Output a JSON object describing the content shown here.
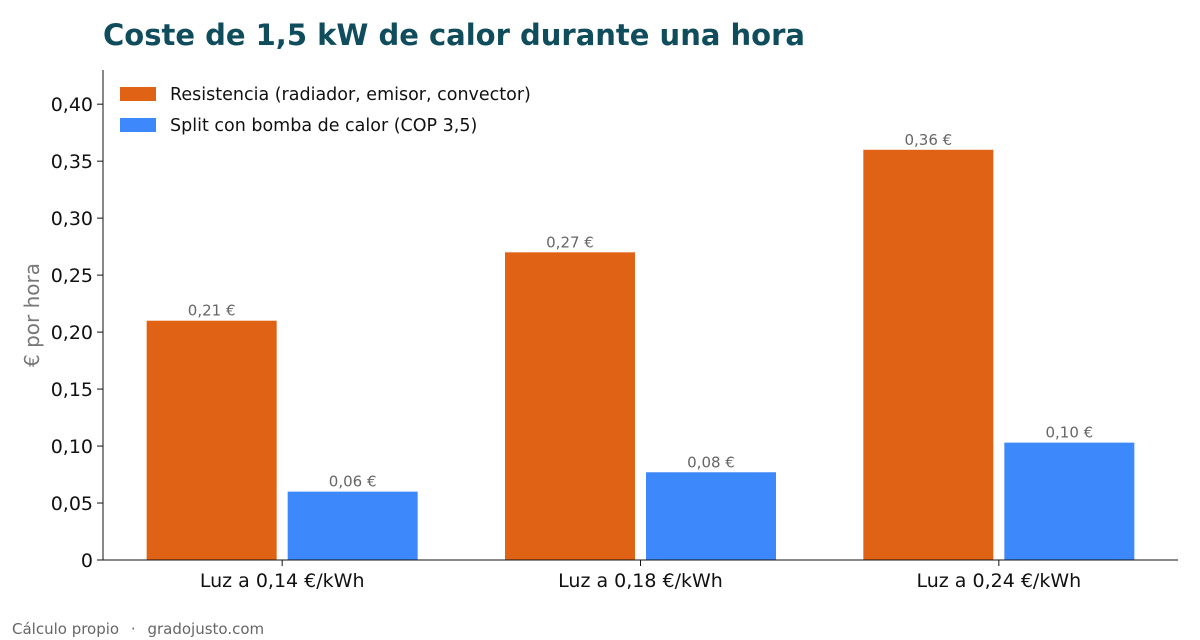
{
  "chart_data": {
    "type": "bar",
    "title": "Coste de 1,5 kW de calor durante una hora",
    "ylabel": "€ por hora",
    "xlabel": "",
    "categories": [
      "Luz a 0,14 €/kWh",
      "Luz a 0,18 €/kWh",
      "Luz a 0,24 €/kWh"
    ],
    "series": [
      {
        "name": "Resistencia (radiador, emisor, convector)",
        "color": "#e06215",
        "values": [
          0.21,
          0.27,
          0.36
        ],
        "labels": [
          "0,21 €",
          "0,27 €",
          "0,36 €"
        ]
      },
      {
        "name": "Split con bomba de calor (COP 3,5)",
        "color": "#3d89fb",
        "values": [
          0.06,
          0.077,
          0.103
        ],
        "labels": [
          "0,06 €",
          "0,08 €",
          "0,10 €"
        ]
      }
    ],
    "ylim": [
      0,
      0.43
    ],
    "yticks": [
      0,
      0.05,
      0.1,
      0.15,
      0.2,
      0.25,
      0.3,
      0.35,
      0.4
    ],
    "ytick_labels": [
      "0",
      "0,05",
      "0,10",
      "0,15",
      "0,20",
      "0,25",
      "0,30",
      "0,35",
      "0,40"
    ],
    "grid": false,
    "legend_position": "top-left"
  },
  "footer": {
    "source": "Cálculo propio",
    "separator": "·",
    "site": "gradojusto.com"
  },
  "colors": {
    "title": "#0f4c5c",
    "axis": "#111111",
    "muted_text": "#666666"
  }
}
